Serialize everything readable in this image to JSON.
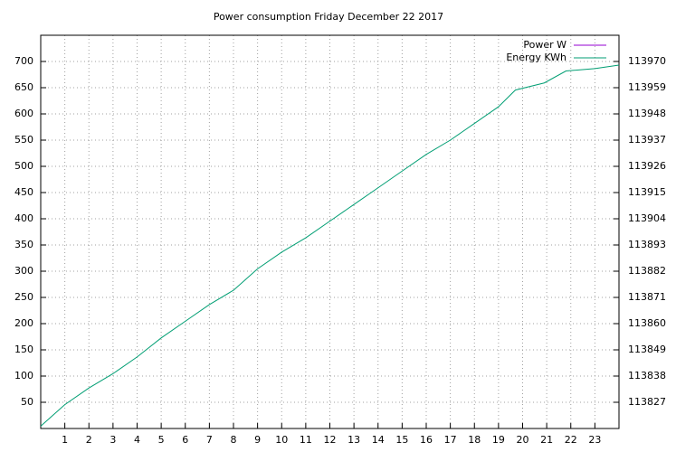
{
  "chart_data": {
    "type": "line",
    "title": "Power consumption Friday December 22 2017",
    "xlim": [
      0,
      24
    ],
    "xticks": [
      1,
      2,
      3,
      4,
      5,
      6,
      7,
      8,
      9,
      10,
      11,
      12,
      13,
      14,
      15,
      16,
      17,
      18,
      19,
      20,
      21,
      22,
      23
    ],
    "ylim": [
      0,
      750
    ],
    "yticks": [
      50,
      100,
      150,
      200,
      250,
      300,
      350,
      400,
      450,
      500,
      550,
      600,
      650,
      700
    ],
    "y2lim": [
      113816,
      113981
    ],
    "y2ticks": [
      113827,
      113838,
      113849,
      113860,
      113871,
      113882,
      113893,
      113904,
      113915,
      113926,
      113937,
      113948,
      113959,
      113970
    ],
    "grid": true,
    "legend": "top-right",
    "series": [
      {
        "name": "Power W",
        "color": "#9400d3",
        "x": [],
        "values": []
      },
      {
        "name": "Energy KWh",
        "color": "#009e73",
        "axis": "y2",
        "x": [
          0,
          1,
          2,
          3,
          4,
          5,
          6,
          7,
          8,
          9,
          10,
          11,
          12,
          13,
          14,
          15,
          16,
          17,
          18,
          19,
          19.7,
          20.9,
          21.8,
          23,
          24
        ],
        "values": [
          113817,
          113826,
          113833,
          113839,
          113846,
          113854,
          113861,
          113868,
          113874,
          113883,
          113890,
          113896,
          113903,
          113910,
          113917,
          113924,
          113931,
          113937,
          113944,
          113951,
          113958,
          113961,
          113966,
          113967,
          113968.5
        ]
      }
    ]
  }
}
